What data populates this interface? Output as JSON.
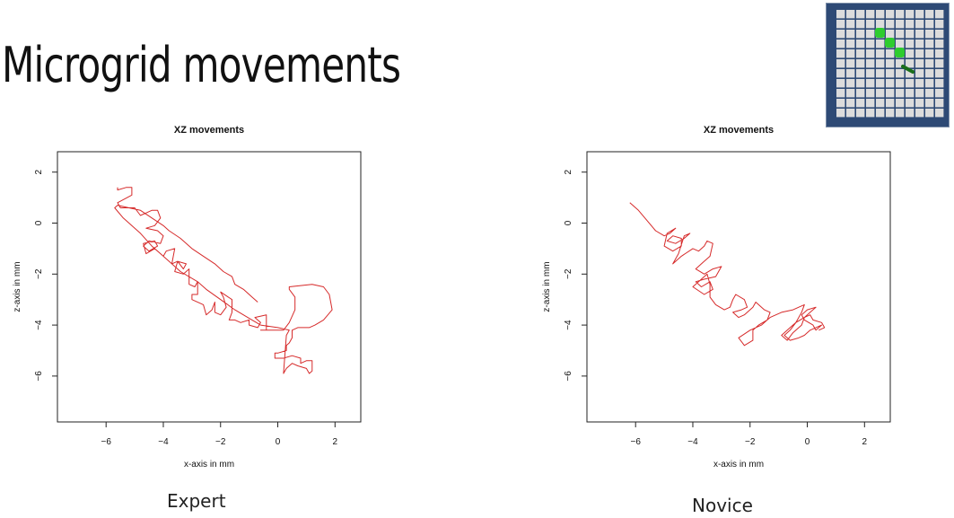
{
  "slide": {
    "title": "Microgrid movements",
    "thumbnail_icon": "microgrid-thumbnail",
    "thumbnail_colors": {
      "frame": "#2e4a75",
      "cell": "#dcdcdc",
      "highlight": "#2ecc2e",
      "path": "#1a6e1a"
    }
  },
  "chart_data": [
    {
      "type": "line",
      "caption": "Expert",
      "title": "XZ movements",
      "xlabel": "x-axis in mm",
      "ylabel": "z-axis in mm",
      "xlim": [
        -7.7,
        2.9
      ],
      "ylim": [
        -7.8,
        2.8
      ],
      "xticks": [
        -6,
        -4,
        -2,
        0,
        2
      ],
      "yticks": [
        2,
        0,
        -2,
        -4,
        -6
      ],
      "grid": false,
      "color": "#d62a2a",
      "series": [
        {
          "x": [
            -5.6,
            -5.6,
            -5.3,
            -5.1,
            -5.1,
            -5.6,
            -5.5,
            -5.0,
            -4.8,
            -4.6,
            -4.4,
            -4.2,
            -4.1,
            -4.3,
            -4.6,
            -4.2,
            -4.0,
            -4.1,
            -4.5,
            -4.7,
            -4.5,
            -4.2,
            -4.3,
            -4.7,
            -4.6,
            -4.3,
            -4.0,
            -3.9,
            -3.6,
            -3.7,
            -3.5,
            -3.3,
            -3.2,
            -3.5,
            -3.6,
            -3.3,
            -3.1,
            -3.1,
            -2.9,
            -2.8,
            -2.8,
            -3.0,
            -3.0,
            -2.6,
            -2.5,
            -2.3,
            -2.2,
            -2.2,
            -2.0,
            -1.8,
            -1.9,
            -2.0,
            -1.6,
            -1.6,
            -1.7,
            -1.5,
            -1.3,
            -1.0,
            -1.0,
            -0.7,
            -0.6,
            -0.8,
            -0.4,
            -0.4,
            -0.6,
            0.2,
            0.4,
            0.6,
            0.6,
            0.4,
            0.4,
            1.2,
            1.6,
            1.8,
            1.9,
            1.6,
            1.3,
            1.1,
            0.7,
            0.5,
            0.5,
            0.4,
            0.3,
            0.3,
            0.0,
            -0.1,
            -0.1,
            0.2,
            0.5,
            0.8,
            0.8,
            1.0,
            1.2,
            1.2,
            1.1,
            1.0,
            0.7,
            0.5,
            0.3,
            0.2,
            0.3,
            0.4,
            0.0,
            -0.6,
            -0.9,
            -1.5,
            -2.0,
            -2.5,
            -2.8,
            -3.4,
            -3.9,
            -4.4,
            -4.8,
            -5.4,
            -5.7,
            -5.6,
            -5.2,
            -4.8,
            -4.4,
            -4.0,
            -3.8,
            -3.4,
            -3.0,
            -2.6,
            -2.2,
            -1.9,
            -1.6,
            -1.5,
            -1.2,
            -0.9,
            -0.7
          ],
          "y": [
            1.4,
            1.3,
            1.4,
            1.4,
            1.1,
            0.8,
            0.6,
            0.6,
            0.3,
            0.4,
            0.5,
            0.5,
            0.2,
            -0.1,
            -0.2,
            -0.3,
            -0.5,
            -0.8,
            -0.7,
            -0.9,
            -1.1,
            -0.9,
            -0.7,
            -0.8,
            -1.2,
            -1.0,
            -1.3,
            -1.1,
            -1.0,
            -1.6,
            -1.5,
            -1.8,
            -1.6,
            -1.5,
            -1.9,
            -2.0,
            -1.8,
            -2.4,
            -2.5,
            -2.3,
            -2.8,
            -2.8,
            -3.0,
            -3.2,
            -3.6,
            -3.4,
            -3.1,
            -3.5,
            -3.6,
            -3.3,
            -2.9,
            -2.7,
            -3.0,
            -3.5,
            -3.8,
            -3.8,
            -3.9,
            -3.8,
            -4.0,
            -4.1,
            -3.9,
            -3.7,
            -3.6,
            -4.2,
            -4.2,
            -4.2,
            -3.9,
            -3.4,
            -2.9,
            -2.6,
            -2.5,
            -2.4,
            -2.5,
            -2.8,
            -3.4,
            -3.8,
            -4.0,
            -4.1,
            -4.1,
            -4.2,
            -4.5,
            -4.7,
            -4.8,
            -5.0,
            -5.1,
            -5.1,
            -5.3,
            -5.3,
            -5.2,
            -5.3,
            -5.5,
            -5.4,
            -5.4,
            -5.8,
            -5.9,
            -5.7,
            -5.6,
            -5.5,
            -5.7,
            -5.9,
            -4.4,
            -4.2,
            -4.1,
            -4.0,
            -3.8,
            -3.4,
            -3.0,
            -2.6,
            -2.3,
            -1.9,
            -1.4,
            -0.9,
            -0.4,
            0.2,
            0.6,
            0.7,
            0.6,
            0.5,
            0.2,
            -0.1,
            -0.3,
            -0.6,
            -1.0,
            -1.3,
            -1.6,
            -1.9,
            -2.1,
            -2.4,
            -2.6,
            -2.9,
            -3.1
          ]
        }
      ]
    },
    {
      "type": "line",
      "caption": "Novice",
      "title": "XZ movements",
      "xlabel": "x-axis in mm",
      "ylabel": "z-axis in mm",
      "xlim": [
        -7.7,
        2.9
      ],
      "ylim": [
        -7.8,
        2.8
      ],
      "xticks": [
        -6,
        -4,
        -2,
        0,
        2
      ],
      "yticks": [
        2,
        0,
        -2,
        -4,
        -6
      ],
      "grid": false,
      "color": "#d62a2a",
      "series": [
        {
          "x": [
            -6.2,
            -5.9,
            -5.6,
            -5.3,
            -5.0,
            -4.8,
            -4.6,
            -4.9,
            -5.0,
            -4.7,
            -4.4,
            -4.4,
            -4.7,
            -4.9,
            -4.6,
            -4.3,
            -4.1,
            -4.3,
            -4.5,
            -4.7,
            -4.4,
            -4.0,
            -3.8,
            -3.6,
            -3.5,
            -3.3,
            -3.4,
            -3.7,
            -3.9,
            -3.6,
            -3.3,
            -3.0,
            -3.2,
            -3.6,
            -3.9,
            -3.7,
            -3.4,
            -3.3,
            -3.6,
            -4.0,
            -3.7,
            -3.5,
            -3.4,
            -3.4,
            -3.2,
            -2.9,
            -2.7,
            -2.6,
            -2.5,
            -2.2,
            -2.1,
            -2.3,
            -2.6,
            -2.4,
            -2.2,
            -1.9,
            -1.8,
            -1.7,
            -1.5,
            -1.3,
            -1.4,
            -1.7,
            -1.9,
            -1.9,
            -2.2,
            -2.4,
            -2.0,
            -1.6,
            -1.4,
            -1.3,
            -0.9,
            -0.5,
            -0.3,
            -0.1,
            -0.2,
            -0.4,
            -0.6,
            -0.8,
            -0.6,
            -0.3,
            -0.1,
            0.1,
            0.3,
            0.5,
            0.3,
            0.2,
            -0.1,
            -0.2,
            0.0,
            0.3,
            0.1,
            -0.1,
            -0.2,
            -0.5,
            -0.7,
            -0.9,
            -0.6,
            -0.4,
            -0.1,
            0.1,
            0.2,
            0.5,
            0.6,
            0.4
          ],
          "y": [
            0.8,
            0.5,
            0.1,
            -0.3,
            -0.5,
            -0.4,
            -0.2,
            -0.4,
            -0.9,
            -1.1,
            -0.9,
            -0.6,
            -0.5,
            -0.7,
            -0.8,
            -0.6,
            -0.4,
            -0.5,
            -1.2,
            -1.6,
            -1.3,
            -1.0,
            -1.1,
            -0.9,
            -0.7,
            -0.8,
            -1.3,
            -1.6,
            -1.8,
            -2.0,
            -1.8,
            -1.7,
            -2.1,
            -2.2,
            -2.3,
            -2.5,
            -2.3,
            -2.6,
            -2.8,
            -2.5,
            -2.2,
            -2.0,
            -2.4,
            -2.9,
            -3.2,
            -3.4,
            -3.3,
            -3.0,
            -2.8,
            -3.0,
            -3.3,
            -3.4,
            -3.5,
            -3.7,
            -3.6,
            -3.3,
            -3.1,
            -3.2,
            -3.4,
            -3.5,
            -3.8,
            -4.0,
            -4.2,
            -4.6,
            -4.8,
            -4.5,
            -4.2,
            -4.0,
            -3.8,
            -3.7,
            -3.5,
            -3.4,
            -3.3,
            -3.2,
            -3.5,
            -3.9,
            -4.2,
            -4.4,
            -4.6,
            -4.5,
            -4.4,
            -4.2,
            -4.1,
            -4.0,
            -4.2,
            -4.0,
            -3.8,
            -3.6,
            -3.4,
            -3.3,
            -3.5,
            -3.7,
            -4.0,
            -4.3,
            -4.6,
            -4.4,
            -4.1,
            -3.9,
            -3.7,
            -3.6,
            -3.8,
            -3.9,
            -4.1,
            -4.2
          ]
        }
      ]
    }
  ]
}
